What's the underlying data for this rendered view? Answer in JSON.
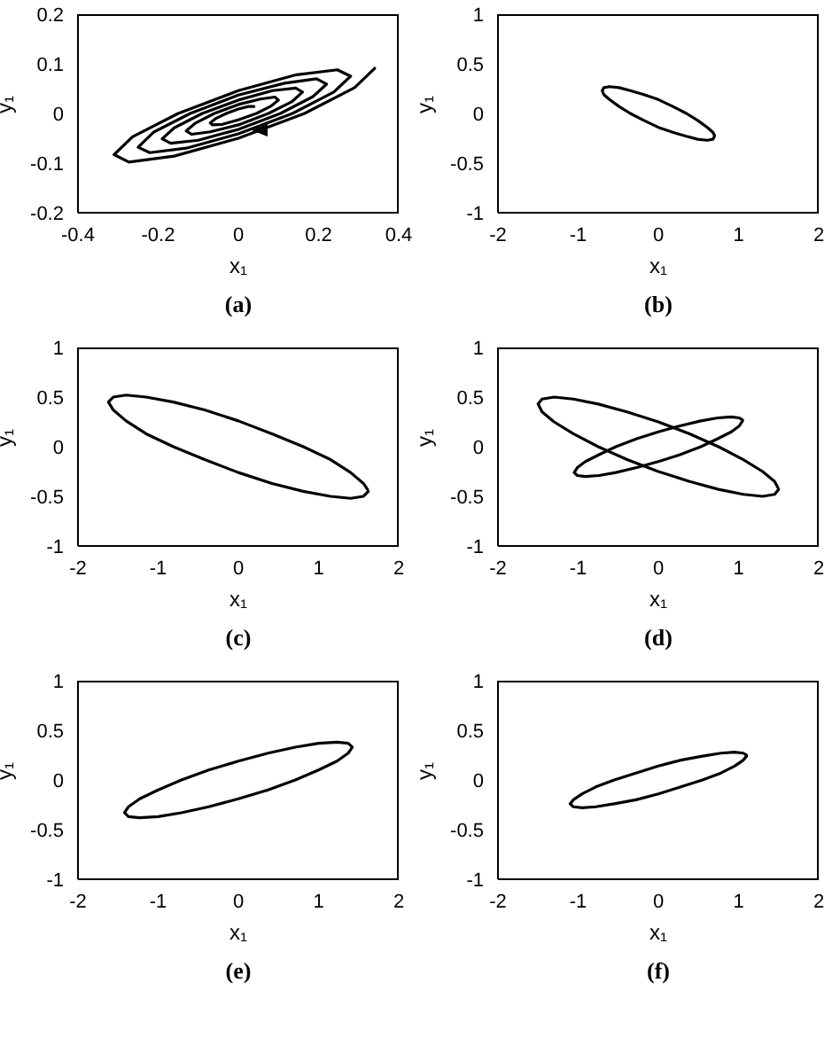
{
  "chart_data": [
    {
      "type": "line",
      "title": "(a)",
      "xlabel": "x₁",
      "ylabel": "y₁",
      "xlim": [
        -0.4,
        0.4
      ],
      "ylim": [
        -0.2,
        0.2
      ],
      "xticks": [
        -0.4,
        -0.2,
        0,
        0.2,
        0.4
      ],
      "yticks": [
        -0.2,
        -0.1,
        0,
        0.1,
        0.2
      ],
      "grid": false,
      "marker": "none",
      "line_style": "solid",
      "series": [
        {
          "color": "#000000",
          "x": [
            0.34,
            0.29,
            0.165,
            0,
            -0.16,
            -0.273,
            -0.31,
            -0.264,
            -0.15,
            0,
            0.145,
            0.247,
            0.28,
            0.238,
            0.135,
            0,
            -0.13,
            -0.221,
            -0.25,
            -0.212,
            -0.12,
            0,
            0.115,
            0.195,
            0.22,
            0.186,
            0.105,
            0,
            -0.1,
            -0.169,
            -0.19,
            -0.16,
            -0.09,
            0,
            0.085,
            0.143,
            0.16,
            0.134,
            0.075,
            0,
            -0.07,
            -0.117,
            -0.13,
            -0.108,
            -0.06,
            0,
            0.055,
            0.091,
            0.1,
            0.082,
            0.045,
            0,
            -0.04,
            -0.065,
            -0.07,
            -0.056,
            -0.03,
            0,
            0.025,
            0.039
          ],
          "values": [
            0.091,
            0.052,
            0,
            -0.05,
            -0.086,
            -0.098,
            -0.083,
            -0.047,
            0,
            0.046,
            0.078,
            0.088,
            0.075,
            0.043,
            0,
            -0.041,
            -0.07,
            -0.079,
            -0.068,
            -0.038,
            0,
            0.037,
            0.061,
            0.07,
            0.059,
            0.034,
            0,
            -0.032,
            -0.054,
            -0.06,
            -0.051,
            -0.029,
            0,
            0.027,
            0.046,
            0.051,
            0.043,
            0.024,
            0,
            -0.023,
            -0.037,
            -0.042,
            -0.035,
            -0.02,
            0,
            0.018,
            0.029,
            0.033,
            0.027,
            0.015,
            0,
            -0.013,
            -0.022,
            -0.023,
            -0.019,
            -0.01,
            0,
            0.009,
            0.014,
            0.014
          ]
        }
      ]
    },
    {
      "type": "line",
      "title": "(b)",
      "xlabel": "x₁",
      "ylabel": "y₁",
      "xlim": [
        -2,
        2
      ],
      "ylim": [
        -1,
        1
      ],
      "xticks": [
        -2,
        -1,
        0,
        1,
        2
      ],
      "yticks": [
        -1,
        -0.5,
        0,
        0.5,
        1
      ],
      "grid": false,
      "marker": "none",
      "line_style": "solid",
      "series": [
        {
          "color": "#000000",
          "x": [
            0.7,
            0.68,
            0.61,
            0.49,
            0.35,
            0.18,
            0,
            -0.18,
            -0.35,
            -0.49,
            -0.61,
            -0.68,
            -0.7,
            -0.68,
            -0.61,
            -0.49,
            -0.35,
            -0.18,
            0,
            0.18,
            0.35,
            0.49,
            0.61,
            0.68,
            0.7
          ],
          "values": [
            -0.23,
            -0.26,
            -0.27,
            -0.26,
            -0.23,
            -0.19,
            -0.14,
            -0.07,
            0,
            0.07,
            0.14,
            0.19,
            0.23,
            0.26,
            0.27,
            0.26,
            0.23,
            0.19,
            0.14,
            0.07,
            0,
            -0.07,
            -0.14,
            -0.19,
            -0.22
          ]
        }
      ]
    },
    {
      "type": "line",
      "title": "(c)",
      "xlabel": "x₁",
      "ylabel": "y₁",
      "xlim": [
        -2,
        2
      ],
      "ylim": [
        -1,
        1
      ],
      "xticks": [
        -2,
        -1,
        0,
        1,
        2
      ],
      "yticks": [
        -1,
        -0.5,
        0,
        0.5,
        1
      ],
      "grid": false,
      "marker": "none",
      "line_style": "solid",
      "series": [
        {
          "color": "#000000",
          "x": [
            1.62,
            1.56,
            1.4,
            1.15,
            0.81,
            0.42,
            0,
            -0.42,
            -0.81,
            -1.15,
            -1.4,
            -1.56,
            -1.62,
            -1.56,
            -1.4,
            -1.15,
            -0.81,
            -0.42,
            0,
            0.42,
            0.81,
            1.15,
            1.4,
            1.56,
            1.61
          ],
          "values": [
            -0.45,
            -0.5,
            -0.52,
            -0.5,
            -0.45,
            -0.37,
            -0.26,
            -0.13,
            0,
            0.13,
            0.26,
            0.37,
            0.45,
            0.5,
            0.52,
            0.5,
            0.45,
            0.37,
            0.26,
            0.13,
            0,
            -0.13,
            -0.26,
            -0.37,
            -0.43
          ]
        }
      ]
    },
    {
      "type": "line",
      "title": "(d)",
      "xlabel": "x₁",
      "ylabel": "y₁",
      "xlim": [
        -2,
        2
      ],
      "ylim": [
        -1,
        1
      ],
      "xticks": [
        -2,
        -1,
        0,
        1,
        2
      ],
      "yticks": [
        -1,
        -0.5,
        0,
        0.5,
        1
      ],
      "grid": false,
      "marker": "none",
      "line_style": "solid",
      "series": [
        {
          "color": "#000000",
          "x": [
            1.5,
            1.45,
            1.3,
            1.06,
            0.75,
            0.39,
            0,
            -0.39,
            -0.75,
            -1.06,
            -1.3,
            -1.45,
            -1.5,
            -1.45,
            -1.3,
            -1.06,
            -0.75,
            -0.39,
            0,
            0.39,
            0.75,
            1.06,
            1.3,
            1.45,
            1.49
          ],
          "values": [
            -0.43,
            -0.48,
            -0.5,
            -0.48,
            -0.43,
            -0.35,
            -0.25,
            -0.13,
            0,
            0.13,
            0.25,
            0.35,
            0.43,
            0.48,
            0.5,
            0.48,
            0.43,
            0.35,
            0.25,
            0.13,
            0,
            -0.13,
            -0.25,
            -0.35,
            -0.41
          ]
        },
        {
          "color": "#000000",
          "x": [
            1.05,
            1.01,
            0.91,
            0.74,
            0.53,
            0.27,
            0,
            -0.27,
            -0.53,
            -0.74,
            -0.91,
            -1.01,
            -1.05,
            -1.01,
            -0.91,
            -0.74,
            -0.53,
            -0.27,
            0,
            0.27,
            0.53,
            0.74,
            0.91,
            1.01,
            1.05
          ],
          "values": [
            0.26,
            0.21,
            0.15,
            0.08,
            0,
            -0.08,
            -0.15,
            -0.21,
            -0.26,
            -0.29,
            -0.3,
            -0.29,
            -0.26,
            -0.21,
            -0.15,
            -0.08,
            0,
            0.08,
            0.15,
            0.21,
            0.26,
            0.29,
            0.3,
            0.29,
            0.27
          ]
        }
      ]
    },
    {
      "type": "line",
      "title": "(e)",
      "xlabel": "x₁",
      "ylabel": "y₁",
      "xlim": [
        -2,
        2
      ],
      "ylim": [
        -1,
        1
      ],
      "xticks": [
        -2,
        -1,
        0,
        1,
        2
      ],
      "yticks": [
        -1,
        -0.5,
        0,
        0.5,
        1
      ],
      "grid": false,
      "marker": "none",
      "line_style": "solid",
      "series": [
        {
          "color": "#000000",
          "x": [
            1.42,
            1.37,
            1.23,
            1,
            0.71,
            0.37,
            0,
            -0.37,
            -0.71,
            -1,
            -1.23,
            -1.37,
            -1.42,
            -1.37,
            -1.23,
            -1,
            -0.71,
            -0.37,
            0,
            0.37,
            0.71,
            1,
            1.23,
            1.37,
            1.41
          ],
          "values": [
            0.33,
            0.27,
            0.19,
            0.1,
            0,
            -0.1,
            -0.19,
            -0.27,
            -0.33,
            -0.37,
            -0.38,
            -0.37,
            -0.33,
            -0.27,
            -0.19,
            -0.1,
            0,
            0.1,
            0.19,
            0.27,
            0.33,
            0.37,
            0.38,
            0.37,
            0.34
          ]
        }
      ]
    },
    {
      "type": "line",
      "title": "(f)",
      "xlabel": "x₁",
      "ylabel": "y₁",
      "xlim": [
        -2,
        2
      ],
      "ylim": [
        -1,
        1
      ],
      "xticks": [
        -2,
        -1,
        0,
        1,
        2
      ],
      "yticks": [
        -1,
        -0.5,
        0,
        0.5,
        1
      ],
      "grid": false,
      "marker": "none",
      "line_style": "solid",
      "series": [
        {
          "color": "#000000",
          "x": [
            1.1,
            1.06,
            0.95,
            0.78,
            0.55,
            0.28,
            0,
            -0.28,
            -0.55,
            -0.78,
            -0.95,
            -1.06,
            -1.1,
            -1.06,
            -0.95,
            -0.78,
            -0.55,
            -0.28,
            0,
            0.28,
            0.55,
            0.78,
            0.95,
            1.06,
            1.1
          ],
          "values": [
            0.24,
            0.2,
            0.14,
            0.07,
            0,
            -0.07,
            -0.14,
            -0.2,
            -0.24,
            -0.27,
            -0.28,
            -0.27,
            -0.24,
            -0.2,
            -0.14,
            -0.07,
            0,
            0.07,
            0.14,
            0.2,
            0.24,
            0.27,
            0.28,
            0.27,
            0.25
          ]
        }
      ]
    }
  ]
}
